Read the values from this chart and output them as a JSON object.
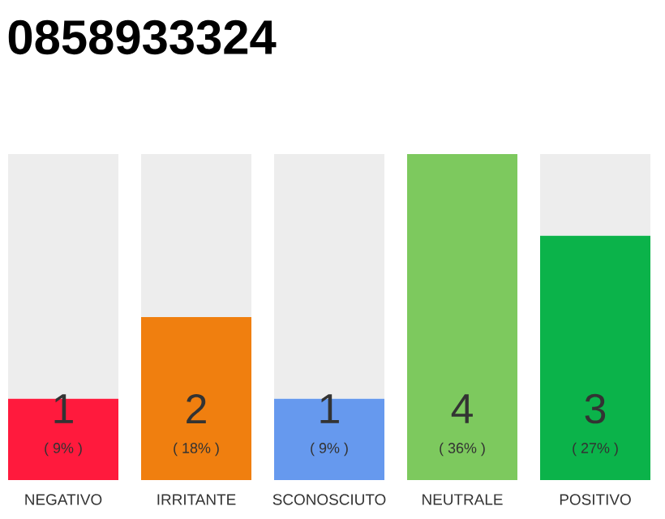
{
  "chart_data": {
    "type": "bar",
    "title": "0858933324",
    "stacked": true,
    "categories": [
      "NEGATIVO",
      "IRRITANTE",
      "SCONOSCIUTO",
      "NEUTRALE",
      "POSITIVO"
    ],
    "series": [
      {
        "colors": [
          "#ff1a3d",
          "#f07f0f",
          "#6699ee",
          "#7dc95e",
          "#0bb34a"
        ],
        "values": [
          9,
          18,
          9,
          36,
          27
        ],
        "value_labels": [
          "( 9% )",
          "( 18% )",
          "( 9% )",
          "( 36% )",
          "( 27% )"
        ]
      },
      {
        "color": "#ededed",
        "values": [
          27,
          18,
          27,
          0,
          9
        ]
      }
    ],
    "annotations": [
      "1",
      "2",
      "1",
      "4",
      "3"
    ],
    "tick_labels": "x"
  }
}
